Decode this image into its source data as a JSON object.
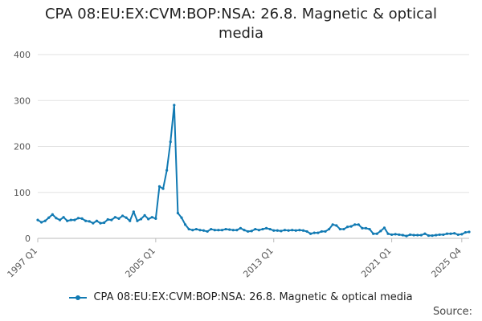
{
  "chart_title": "CPA 08:EU:EX:CVM:BOP:NSA: 26.8. Magnetic & optical media",
  "source_label": "Source:",
  "chart_data": {
    "type": "line",
    "title": "CPA 08:EU:EX:CVM:BOP:NSA: 26.8. Magnetic & optical media",
    "xlabel": "",
    "ylabel": "",
    "ylim": [
      0,
      400
    ],
    "yticks": [
      "0",
      "100",
      "200",
      "300",
      "400"
    ],
    "xticks": [
      "1997 Q1",
      "2005 Q1",
      "2013 Q1",
      "2021 Q1",
      "2025 Q4"
    ],
    "grid": true,
    "legend_position": "bottom",
    "color": "#117ab3",
    "x_start": "1997 Q1",
    "x_end": "2025 Q4",
    "series": [
      {
        "name": "CPA 08:EU:EX:CVM:BOP:NSA: 26.8. Magnetic & optical media",
        "values": [
          40,
          35,
          38,
          45,
          52,
          44,
          40,
          46,
          38,
          40,
          40,
          44,
          43,
          38,
          37,
          33,
          38,
          33,
          34,
          41,
          40,
          46,
          43,
          49,
          45,
          38,
          58,
          38,
          42,
          50,
          42,
          46,
          43,
          113,
          108,
          148,
          210,
          290,
          55,
          45,
          30,
          20,
          18,
          20,
          18,
          17,
          15,
          20,
          18,
          18,
          18,
          20,
          19,
          18,
          18,
          22,
          18,
          15,
          16,
          20,
          18,
          20,
          22,
          20,
          17,
          17,
          16,
          18,
          17,
          18,
          17,
          18,
          17,
          15,
          10,
          12,
          12,
          15,
          15,
          20,
          30,
          28,
          20,
          20,
          25,
          26,
          30,
          30,
          22,
          22,
          20,
          10,
          10,
          16,
          23,
          10,
          8,
          9,
          8,
          7,
          5,
          8,
          7,
          7,
          7,
          10,
          6,
          6,
          7,
          8,
          8,
          10,
          10,
          11,
          8,
          9,
          13,
          14
        ]
      }
    ]
  }
}
